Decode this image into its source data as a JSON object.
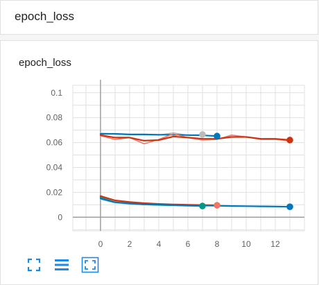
{
  "header": {
    "title": "epoch_loss"
  },
  "card": {
    "title": "epoch_loss"
  },
  "toolbar": {
    "buttons": [
      {
        "name": "fullscreen",
        "icon": "fullscreen-icon"
      },
      {
        "name": "toggle-log-scale",
        "icon": "list-lines-icon"
      },
      {
        "name": "fit-domain",
        "icon": "fit-to-domain-icon"
      }
    ]
  },
  "colors": {
    "blue": "#0077bb",
    "teal": "#009988",
    "orange_red": "#cc3311",
    "salmon": "#ee7766",
    "gray": "#bbbbbb",
    "axis": "#9e9e9e",
    "grid": "#e0e0e0"
  },
  "chart_data": {
    "type": "line",
    "title": "epoch_loss",
    "xlabel": "",
    "ylabel": "",
    "xlim": [
      -1.9,
      14
    ],
    "ylim": [
      -0.011,
      0.106
    ],
    "x_ticks": [
      0,
      2,
      4,
      6,
      8,
      10,
      12
    ],
    "y_ticks": [
      0,
      0.02,
      0.04,
      0.06,
      0.08,
      0.1
    ],
    "x_tick_labels": [
      "0",
      "2",
      "4",
      "6",
      "8",
      "10",
      "12"
    ],
    "y_tick_labels": [
      "0",
      "0.02",
      "0.04",
      "0.06",
      "0.08",
      "0.1"
    ],
    "grid": true,
    "series": [
      {
        "color": "#bbbbbb",
        "smoothed": false,
        "x": [
          0,
          1,
          2,
          3,
          4,
          5,
          6,
          7
        ],
        "y": [
          0.0675,
          0.0668,
          0.0665,
          0.0662,
          0.066,
          0.0678,
          0.0658,
          0.0665
        ]
      },
      {
        "color": "#0077bb",
        "smoothed": true,
        "x": [
          0,
          1,
          2,
          3,
          4,
          5,
          6,
          7,
          8
        ],
        "y": [
          0.067,
          0.067,
          0.0665,
          0.0665,
          0.0663,
          0.0663,
          0.066,
          0.0658,
          0.0652
        ]
      },
      {
        "color": "#ee7766",
        "smoothed": false,
        "x": [
          0,
          1,
          2,
          3,
          4,
          5,
          6,
          7,
          8,
          9,
          10,
          11,
          12,
          13
        ],
        "y": [
          0.0655,
          0.0625,
          0.064,
          0.059,
          0.0625,
          0.067,
          0.064,
          0.062,
          0.0625,
          0.066,
          0.0645,
          0.0625,
          0.0625,
          0.0615
        ]
      },
      {
        "color": "#cc3311",
        "smoothed": true,
        "x": [
          0,
          1,
          2,
          3,
          4,
          5,
          6,
          7,
          8,
          9,
          10,
          11,
          12,
          13
        ],
        "y": [
          0.066,
          0.064,
          0.064,
          0.0615,
          0.062,
          0.0648,
          0.064,
          0.063,
          0.063,
          0.0645,
          0.0645,
          0.063,
          0.063,
          0.062
        ]
      },
      {
        "color": "#bfe3e0",
        "smoothed": false,
        "x": [
          0,
          1,
          2,
          3,
          4,
          5,
          6,
          7
        ],
        "y": [
          0.0145,
          0.0115,
          0.0105,
          0.01,
          0.0098,
          0.0095,
          0.0092,
          0.009
        ]
      },
      {
        "color": "#009988",
        "smoothed": true,
        "x": [
          0,
          1,
          2,
          3,
          4,
          5,
          6,
          7
        ],
        "y": [
          0.016,
          0.0125,
          0.011,
          0.0103,
          0.0099,
          0.0096,
          0.0093,
          0.009
        ]
      },
      {
        "color": "#f4a89e",
        "smoothed": false,
        "x": [
          0,
          1,
          2,
          3,
          4,
          5,
          6,
          7,
          8
        ],
        "y": [
          0.017,
          0.013,
          0.0118,
          0.011,
          0.0105,
          0.0102,
          0.0099,
          0.0097,
          0.0095
        ]
      },
      {
        "color": "#cc3311",
        "smoothed": true,
        "x": [
          0,
          1,
          2,
          3,
          4,
          5,
          6,
          7,
          8
        ],
        "y": [
          0.017,
          0.0135,
          0.0122,
          0.0113,
          0.0107,
          0.0103,
          0.01,
          0.0098,
          0.0096
        ]
      },
      {
        "color": "#a8d2ea",
        "smoothed": false,
        "x": [
          0,
          1,
          2,
          3,
          4,
          5,
          6,
          7,
          8,
          9,
          10,
          11,
          12,
          13
        ],
        "y": [
          0.0145,
          0.0115,
          0.0108,
          0.0103,
          0.01,
          0.0098,
          0.0095,
          0.0093,
          0.0092,
          0.009,
          0.0089,
          0.0087,
          0.0086,
          0.0084
        ]
      },
      {
        "color": "#0077bb",
        "smoothed": true,
        "x": [
          0,
          1,
          2,
          3,
          4,
          5,
          6,
          7,
          8,
          9,
          10,
          11,
          12,
          13
        ],
        "y": [
          0.015,
          0.012,
          0.011,
          0.0104,
          0.0101,
          0.0098,
          0.0096,
          0.0094,
          0.0092,
          0.009,
          0.0089,
          0.0087,
          0.0086,
          0.0084
        ]
      }
    ],
    "endpoints": [
      {
        "x": 7,
        "y": 0.0665,
        "color": "#bbbbbb"
      },
      {
        "x": 8,
        "y": 0.0652,
        "color": "#0077bb"
      },
      {
        "x": 13,
        "y": 0.062,
        "color": "#cc3311"
      },
      {
        "x": 7,
        "y": 0.009,
        "color": "#009988"
      },
      {
        "x": 8,
        "y": 0.0096,
        "color": "#ee7766"
      },
      {
        "x": 13,
        "y": 0.0084,
        "color": "#0077bb"
      }
    ]
  }
}
